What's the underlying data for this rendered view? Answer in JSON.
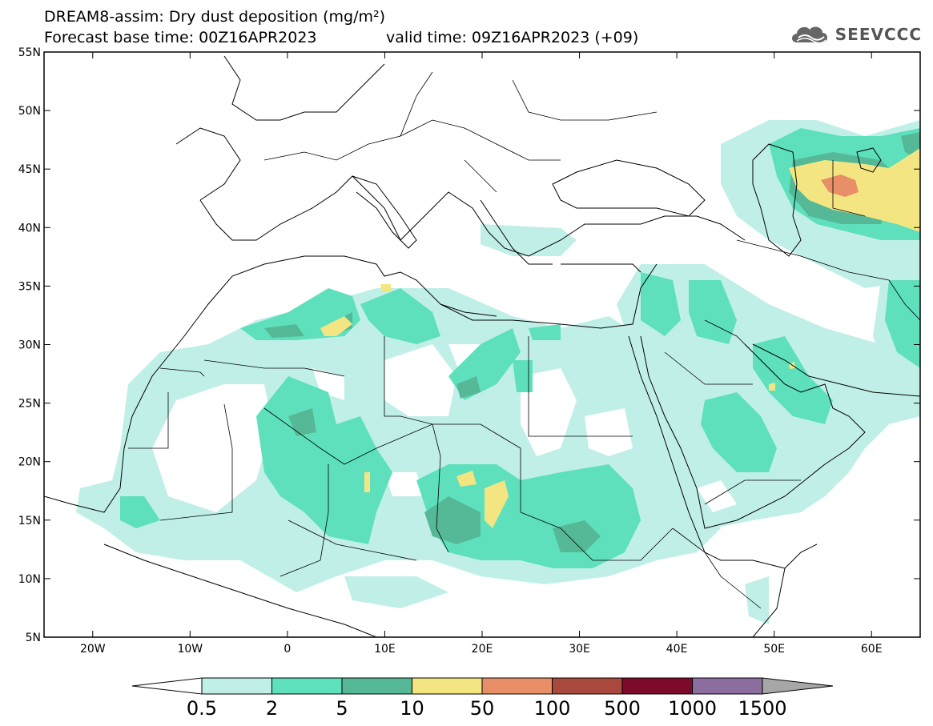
{
  "title": {
    "line1": "DREAM8-assim: Dry dust deposition (mg/m²)",
    "line2": "Forecast base time: 00Z16APR2023",
    "valid": "valid time: 09Z16APR2023 (+09)"
  },
  "logo": {
    "icon": "cloud-icon",
    "text": "SEEVCCC"
  },
  "map": {
    "lon_range": [
      -25,
      65
    ],
    "lat_range": [
      5,
      55
    ],
    "x_ticks": [
      {
        "lon": -20,
        "label": "20W"
      },
      {
        "lon": -10,
        "label": "10W"
      },
      {
        "lon": 0,
        "label": "0"
      },
      {
        "lon": 10,
        "label": "10E"
      },
      {
        "lon": 20,
        "label": "20E"
      },
      {
        "lon": 30,
        "label": "30E"
      },
      {
        "lon": 40,
        "label": "40E"
      },
      {
        "lon": 50,
        "label": "50E"
      },
      {
        "lon": 60,
        "label": "60E"
      }
    ],
    "y_ticks": [
      {
        "lat": 55,
        "label": "55N"
      },
      {
        "lat": 50,
        "label": "50N"
      },
      {
        "lat": 45,
        "label": "45N"
      },
      {
        "lat": 40,
        "label": "40N"
      },
      {
        "lat": 35,
        "label": "35N"
      },
      {
        "lat": 30,
        "label": "30N"
      },
      {
        "lat": 25,
        "label": "25N"
      },
      {
        "lat": 20,
        "label": "20N"
      },
      {
        "lat": 15,
        "label": "15N"
      },
      {
        "lat": 10,
        "label": "10N"
      },
      {
        "lat": 5,
        "label": "5N"
      }
    ]
  },
  "colorbar": {
    "labels": [
      "0.5",
      "2",
      "5",
      "10",
      "50",
      "100",
      "500",
      "1000",
      "1500"
    ],
    "colors": [
      "#c0efe8",
      "#5ee0bc",
      "#55b997",
      "#f3e682",
      "#e88f68",
      "#a9483c",
      "#7d0a2a",
      "#8b6d9e"
    ],
    "below_color": "#ffffff",
    "above_color": "#a7a7a7"
  }
}
